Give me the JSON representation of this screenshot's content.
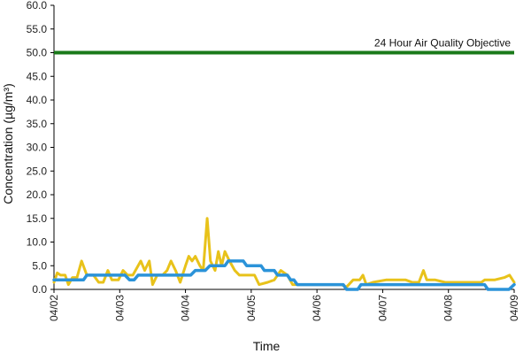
{
  "chart_data": {
    "type": "line",
    "xlabel": "Time",
    "ylabel": "Concentration (µg/m³)",
    "ylim": [
      0,
      60
    ],
    "yticks": [
      "0.0",
      "5.0",
      "10.0",
      "15.0",
      "20.0",
      "25.0",
      "30.0",
      "35.0",
      "40.0",
      "45.0",
      "50.0",
      "55.0",
      "60.0"
    ],
    "xlim": [
      0,
      7
    ],
    "xticks": [
      "04/02",
      "04/03",
      "04/04",
      "04/05",
      "04/06",
      "04/07",
      "04/08",
      "04/09"
    ],
    "grid": false,
    "reference_line": {
      "value": 50,
      "label": "24 Hour Air Quality Objective",
      "color": "#1a7a1a"
    },
    "series": [
      {
        "color": "#e8c21a",
        "points": [
          [
            0.0,
            1.5
          ],
          [
            0.05,
            3.5
          ],
          [
            0.1,
            3.0
          ],
          [
            0.17,
            3.0
          ],
          [
            0.22,
            1.0
          ],
          [
            0.28,
            2.5
          ],
          [
            0.35,
            2.5
          ],
          [
            0.42,
            6.0
          ],
          [
            0.5,
            3.0
          ],
          [
            0.6,
            3.0
          ],
          [
            0.68,
            1.5
          ],
          [
            0.75,
            1.5
          ],
          [
            0.82,
            4.0
          ],
          [
            0.88,
            2.0
          ],
          [
            0.98,
            2.0
          ],
          [
            1.05,
            4.0
          ],
          [
            1.12,
            3.0
          ],
          [
            1.2,
            3.0
          ],
          [
            1.32,
            6.0
          ],
          [
            1.38,
            4.0
          ],
          [
            1.45,
            6.0
          ],
          [
            1.5,
            1.0
          ],
          [
            1.57,
            3.0
          ],
          [
            1.65,
            3.0
          ],
          [
            1.72,
            4.0
          ],
          [
            1.78,
            6.0
          ],
          [
            1.85,
            4.0
          ],
          [
            1.92,
            1.5
          ],
          [
            2.0,
            5.0
          ],
          [
            2.05,
            7.0
          ],
          [
            2.1,
            6.0
          ],
          [
            2.15,
            7.0
          ],
          [
            2.22,
            5.0
          ],
          [
            2.27,
            4.0
          ],
          [
            2.33,
            15.0
          ],
          [
            2.38,
            6.0
          ],
          [
            2.45,
            4.0
          ],
          [
            2.5,
            8.0
          ],
          [
            2.55,
            5.0
          ],
          [
            2.6,
            8.0
          ],
          [
            2.67,
            6.0
          ],
          [
            2.75,
            4.0
          ],
          [
            2.82,
            3.0
          ],
          [
            2.88,
            3.0
          ],
          [
            2.95,
            3.0
          ],
          [
            3.05,
            3.0
          ],
          [
            3.12,
            1.0
          ],
          [
            3.25,
            1.5
          ],
          [
            3.35,
            2.0
          ],
          [
            3.45,
            4.0
          ],
          [
            3.55,
            3.0
          ],
          [
            3.63,
            1.0
          ],
          [
            3.75,
            1.0
          ],
          [
            4.0,
            1.0
          ],
          [
            4.2,
            1.0
          ],
          [
            4.37,
            1.0
          ],
          [
            4.45,
            0.5
          ],
          [
            4.55,
            2.0
          ],
          [
            4.65,
            2.0
          ],
          [
            4.7,
            3.0
          ],
          [
            4.75,
            1.0
          ],
          [
            4.85,
            1.5
          ],
          [
            5.05,
            2.0
          ],
          [
            5.35,
            2.0
          ],
          [
            5.45,
            1.5
          ],
          [
            5.55,
            1.5
          ],
          [
            5.62,
            4.0
          ],
          [
            5.67,
            2.0
          ],
          [
            5.8,
            2.0
          ],
          [
            5.95,
            1.5
          ],
          [
            6.1,
            1.5
          ],
          [
            6.25,
            1.5
          ],
          [
            6.5,
            1.5
          ],
          [
            6.55,
            2.0
          ],
          [
            6.7,
            2.0
          ],
          [
            6.85,
            2.5
          ],
          [
            6.93,
            3.0
          ],
          [
            7.0,
            1.5
          ]
        ]
      },
      {
        "color": "#2b93d9",
        "points": [
          [
            0.0,
            2.0
          ],
          [
            0.45,
            2.0
          ],
          [
            0.5,
            3.0
          ],
          [
            1.08,
            3.0
          ],
          [
            1.15,
            2.0
          ],
          [
            1.22,
            2.0
          ],
          [
            1.28,
            3.0
          ],
          [
            2.08,
            3.0
          ],
          [
            2.15,
            4.0
          ],
          [
            2.3,
            4.0
          ],
          [
            2.37,
            5.0
          ],
          [
            2.6,
            5.0
          ],
          [
            2.65,
            6.0
          ],
          [
            2.88,
            6.0
          ],
          [
            2.93,
            5.0
          ],
          [
            3.15,
            5.0
          ],
          [
            3.2,
            4.0
          ],
          [
            3.35,
            4.0
          ],
          [
            3.4,
            3.0
          ],
          [
            3.55,
            3.0
          ],
          [
            3.6,
            2.0
          ],
          [
            3.65,
            2.0
          ],
          [
            3.7,
            1.0
          ],
          [
            4.4,
            1.0
          ],
          [
            4.45,
            0.0
          ],
          [
            4.62,
            0.0
          ],
          [
            4.67,
            1.0
          ],
          [
            6.55,
            1.0
          ],
          [
            6.6,
            0.0
          ],
          [
            6.92,
            0.0
          ],
          [
            7.0,
            1.0
          ]
        ]
      }
    ]
  }
}
